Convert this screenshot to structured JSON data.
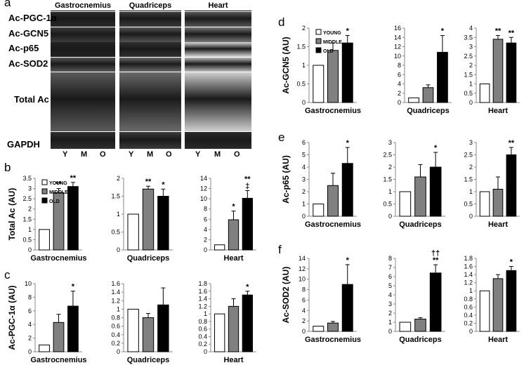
{
  "panel_letters": {
    "a": "a",
    "b": "b",
    "c": "c",
    "d": "d",
    "e": "e",
    "f": "f"
  },
  "blot": {
    "tissues": [
      "Gastrocnemius",
      "Quadriceps",
      "Heart"
    ],
    "rows": [
      "Ac-PGC-1α",
      "Ac-GCN5",
      "Ac-p65",
      "Ac-SOD2",
      "Total Ac",
      "GAPDH"
    ],
    "lanes": [
      "Y",
      "M",
      "O"
    ]
  },
  "legend": [
    "YOUNG",
    "MIDDLE",
    "OLD"
  ],
  "colors": {
    "young": "#ffffff",
    "middle": "#808080",
    "old": "#000000"
  },
  "chart_data": [
    {
      "id": "b-gastro",
      "type": "bar",
      "panel": "b",
      "title": "Gastrocnemius",
      "ylabel": "Total Ac (AU)",
      "ylim": [
        0,
        3.5
      ],
      "ticks": [
        "0",
        "0.5",
        "1",
        "1.5",
        "2",
        "2.5",
        "3",
        "3.5"
      ],
      "categories": [
        "YOUNG",
        "MIDDLE",
        "OLD"
      ],
      "values": [
        1,
        2.8,
        3.1
      ],
      "errors": [
        0,
        0.2,
        0.2
      ],
      "sig": [
        "",
        "**",
        "**"
      ],
      "legend": true
    },
    {
      "id": "b-quad",
      "type": "bar",
      "panel": "b",
      "title": "Quadriceps",
      "ylim": [
        0,
        2
      ],
      "ticks": [
        "0",
        "0.5",
        "1",
        "1.5",
        "2"
      ],
      "categories": [
        "YOUNG",
        "MIDDLE",
        "OLD"
      ],
      "values": [
        1,
        1.7,
        1.5
      ],
      "errors": [
        0,
        0.08,
        0.2
      ],
      "sig": [
        "",
        "**",
        "*"
      ]
    },
    {
      "id": "b-heart",
      "type": "bar",
      "panel": "b",
      "title": "Heart",
      "ylim": [
        0,
        14
      ],
      "ticks": [
        "0",
        "2",
        "4",
        "6",
        "8",
        "10",
        "12",
        "14"
      ],
      "categories": [
        "YOUNG",
        "MIDDLE",
        "OLD"
      ],
      "values": [
        1,
        5.9,
        10.1
      ],
      "errors": [
        0,
        1.7,
        1.5
      ],
      "sig": [
        "",
        "*",
        "**\n‡"
      ]
    },
    {
      "id": "c-gastro",
      "type": "bar",
      "panel": "c",
      "title": "Gastrocnemius",
      "ylabel": "Ac-PGC-1α (AU)",
      "ylim": [
        0,
        10
      ],
      "ticks": [
        "0",
        "2",
        "4",
        "6",
        "8",
        "10"
      ],
      "categories": [
        "YOUNG",
        "MIDDLE",
        "OLD"
      ],
      "values": [
        1,
        4.3,
        6.7
      ],
      "errors": [
        0,
        1.2,
        2.2
      ],
      "sig": [
        "",
        "",
        "*"
      ]
    },
    {
      "id": "c-quad",
      "type": "bar",
      "panel": "c",
      "title": "Quadriceps",
      "ylim": [
        0,
        1.6
      ],
      "ticks": [
        "0",
        "0.2",
        "0.4",
        "0.6",
        "0.8",
        "1",
        "1.2",
        "1.4",
        "1.6"
      ],
      "categories": [
        "YOUNG",
        "MIDDLE",
        "OLD"
      ],
      "values": [
        1,
        0.8,
        1.1
      ],
      "errors": [
        0,
        0.1,
        0.4
      ],
      "sig": [
        "",
        "",
        ""
      ]
    },
    {
      "id": "c-heart",
      "type": "bar",
      "panel": "c",
      "title": "Heart",
      "ylim": [
        0,
        1.8
      ],
      "ticks": [
        "0",
        "0.2",
        "0.4",
        "0.6",
        "0.8",
        "1",
        "1.2",
        "1.4",
        "1.6",
        "1.8"
      ],
      "categories": [
        "YOUNG",
        "MIDDLE",
        "OLD"
      ],
      "values": [
        1,
        1.2,
        1.5
      ],
      "errors": [
        0,
        0.2,
        0.1
      ],
      "sig": [
        "",
        "",
        "*"
      ]
    },
    {
      "id": "d-gastro",
      "type": "bar",
      "panel": "d",
      "title": "Gastrocnemius",
      "ylabel": "Ac-GCN5 (AU)",
      "ylim": [
        0,
        2
      ],
      "ticks": [
        "0",
        "0.5",
        "1",
        "1.5",
        "2"
      ],
      "categories": [
        "YOUNG",
        "MIDDLE",
        "OLD"
      ],
      "values": [
        1,
        1.4,
        1.6
      ],
      "errors": [
        0,
        0.2,
        0.2
      ],
      "sig": [
        "",
        "",
        "*"
      ],
      "legend": true
    },
    {
      "id": "d-quad",
      "type": "bar",
      "panel": "d",
      "title": "Quadriceps",
      "ylim": [
        0,
        16
      ],
      "ticks": [
        "0",
        "2",
        "4",
        "6",
        "8",
        "10",
        "12",
        "14",
        "16"
      ],
      "categories": [
        "YOUNG",
        "MIDDLE",
        "OLD"
      ],
      "values": [
        1,
        3.2,
        10.8
      ],
      "errors": [
        0,
        0.6,
        3.6
      ],
      "sig": [
        "",
        "",
        "*"
      ]
    },
    {
      "id": "d-heart",
      "type": "bar",
      "panel": "d",
      "title": "Heart",
      "ylim": [
        0,
        4
      ],
      "ticks": [
        "0",
        "0.5",
        "1",
        "1.5",
        "2",
        "2.5",
        "3",
        "3.5",
        "4"
      ],
      "categories": [
        "YOUNG",
        "MIDDLE",
        "OLD"
      ],
      "values": [
        1,
        3.4,
        3.2
      ],
      "errors": [
        0,
        0.2,
        0.3
      ],
      "sig": [
        "",
        "**",
        "**"
      ]
    },
    {
      "id": "e-gastro",
      "type": "bar",
      "panel": "e",
      "title": "Gastrocnemius",
      "ylabel": "Ac-p65 (AU)",
      "ylim": [
        0,
        6
      ],
      "ticks": [
        "0",
        "1",
        "2",
        "3",
        "4",
        "5",
        "6"
      ],
      "categories": [
        "YOUNG",
        "MIDDLE",
        "OLD"
      ],
      "values": [
        1,
        2.5,
        4.3
      ],
      "errors": [
        0,
        1.0,
        1.3
      ],
      "sig": [
        "",
        "",
        "*"
      ]
    },
    {
      "id": "e-quad",
      "type": "bar",
      "panel": "e",
      "title": "Quadriceps",
      "ylim": [
        0,
        3
      ],
      "ticks": [
        "0",
        "0.5",
        "1",
        "1.5",
        "2",
        "2.5",
        "3"
      ],
      "categories": [
        "YOUNG",
        "MIDDLE",
        "OLD"
      ],
      "values": [
        1,
        1.6,
        2.0
      ],
      "errors": [
        0,
        0.5,
        0.6
      ],
      "sig": [
        "",
        "",
        "*"
      ]
    },
    {
      "id": "e-heart",
      "type": "bar",
      "panel": "e",
      "title": "Heart",
      "ylim": [
        0,
        3
      ],
      "ticks": [
        "0",
        "0.5",
        "1",
        "1.5",
        "2",
        "2.5",
        "3"
      ],
      "categories": [
        "YOUNG",
        "MIDDLE",
        "OLD"
      ],
      "values": [
        1,
        1.1,
        2.5
      ],
      "errors": [
        0,
        0.5,
        0.3
      ],
      "sig": [
        "",
        "",
        "**"
      ]
    },
    {
      "id": "f-gastro",
      "type": "bar",
      "panel": "f",
      "title": "Gastrocnemius",
      "ylabel": "Ac-SOD2 (AU)",
      "ylim": [
        0,
        14
      ],
      "ticks": [
        "0",
        "2",
        "4",
        "6",
        "8",
        "10",
        "12",
        "14"
      ],
      "categories": [
        "YOUNG",
        "MIDDLE",
        "OLD"
      ],
      "values": [
        1,
        1.6,
        9.0
      ],
      "errors": [
        0,
        0.3,
        3.8
      ],
      "sig": [
        "",
        "",
        "*"
      ]
    },
    {
      "id": "f-quad",
      "type": "bar",
      "panel": "f",
      "title": "Quadriceps",
      "ylim": [
        0,
        8
      ],
      "ticks": [
        "0",
        "1",
        "2",
        "3",
        "4",
        "5",
        "6",
        "7",
        "8"
      ],
      "categories": [
        "YOUNG",
        "MIDDLE",
        "OLD"
      ],
      "values": [
        1,
        1.35,
        6.4
      ],
      "errors": [
        0,
        0.15,
        0.9
      ],
      "sig": [
        "",
        "",
        "††\n**"
      ]
    },
    {
      "id": "f-heart",
      "type": "bar",
      "panel": "f",
      "title": "Heart",
      "ylim": [
        0,
        1.8
      ],
      "ticks": [
        "0",
        "0.2",
        "0.4",
        "0.6",
        "0.8",
        "1",
        "1.2",
        "1.4",
        "1.6",
        "1.8"
      ],
      "categories": [
        "YOUNG",
        "MIDDLE",
        "OLD"
      ],
      "values": [
        1,
        1.3,
        1.5
      ],
      "errors": [
        0,
        0.1,
        0.1
      ],
      "sig": [
        "",
        "",
        "*"
      ]
    }
  ]
}
